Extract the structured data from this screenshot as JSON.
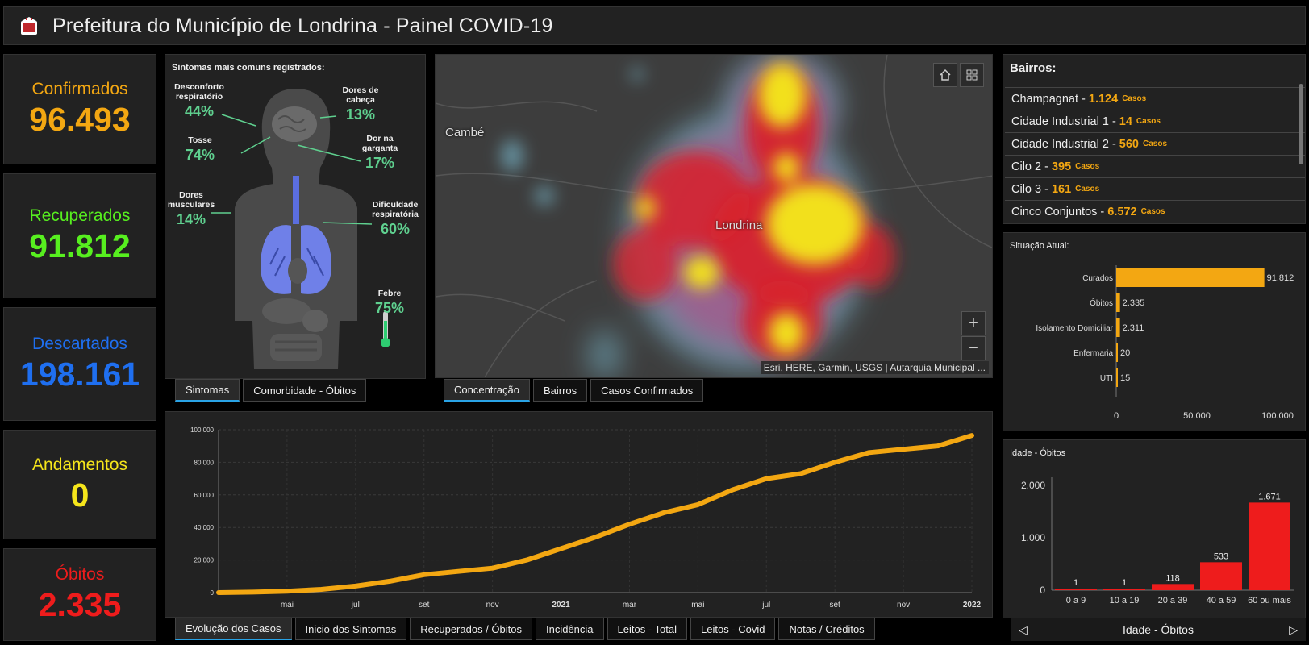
{
  "header": {
    "title": "Prefeitura do Município de Londrina - Painel COVID-19",
    "logo_icon": "city-crest-icon"
  },
  "stats": [
    {
      "label": "Confirmados",
      "value": "96.493",
      "color": "#f3a712"
    },
    {
      "label": "Recuperados",
      "value": "91.812",
      "color": "#57ef1f"
    },
    {
      "label": "Descartados",
      "value": "198.161",
      "color": "#1f6ff0"
    },
    {
      "label": "Andamentos",
      "value": "0",
      "color": "#f5e51b"
    },
    {
      "label": "Óbitos",
      "value": "2.335",
      "color": "#ee1c1c"
    }
  ],
  "symptoms": {
    "title": "Sintomas mais comuns registrados:",
    "items": [
      {
        "name": "Desconforto respiratório",
        "pct": "44%"
      },
      {
        "name": "Dores de cabeça",
        "pct": "13%"
      },
      {
        "name": "Tosse",
        "pct": "74%"
      },
      {
        "name": "Dor na garganta",
        "pct": "17%"
      },
      {
        "name": "Dores musculares",
        "pct": "14%"
      },
      {
        "name": "Dificuldade respiratória",
        "pct": "60%"
      },
      {
        "name": "Febre",
        "pct": "75%"
      }
    ],
    "tabs": [
      "Sintomas",
      "Comorbidade - Óbitos"
    ]
  },
  "map": {
    "labels": [
      "Cambé",
      "Londrina"
    ],
    "attribution": "Esri, HERE, Garmin, USGS | Autarquia Municipal ...",
    "zoom_in": "+",
    "zoom_out": "−",
    "home_icon": "home-icon",
    "grid_icon": "basemap-gallery-icon",
    "tabs": [
      "Concentração",
      "Bairros",
      "Casos Confirmados"
    ]
  },
  "bairros": {
    "title": "Bairros:",
    "items": [
      {
        "name": "Champagnat",
        "value": "1.124",
        "unit": "Casos"
      },
      {
        "name": "Cidade Industrial 1",
        "value": "14",
        "unit": "Casos"
      },
      {
        "name": "Cidade Industrial 2",
        "value": "560",
        "unit": "Casos"
      },
      {
        "name": "Cilo 2",
        "value": "395",
        "unit": "Casos"
      },
      {
        "name": "Cilo 3",
        "value": "161",
        "unit": "Casos"
      },
      {
        "name": "Cinco Conjuntos",
        "value": "6.572",
        "unit": "Casos"
      }
    ]
  },
  "evolution": {
    "tabs": [
      "Evolução dos Casos",
      "Inicio dos Sintomas",
      "Recuperados / Óbitos",
      "Incidência",
      "Leitos - Total",
      "Leitos - Covid",
      "Notas / Créditos"
    ]
  },
  "idade_footer": {
    "label": "Idade - Óbitos",
    "prev": "◁",
    "next": "▷"
  },
  "chart_data": [
    {
      "type": "bar",
      "orientation": "horizontal",
      "title": "Situação Atual:",
      "categories": [
        "Curados",
        "Óbitos",
        "Isolamento Domiciliar",
        "Enfermaria",
        "UTI"
      ],
      "values": [
        91812,
        2335,
        2311,
        20,
        15
      ],
      "value_labels": [
        "91.812",
        "2.335",
        "2.311",
        "20",
        "15"
      ],
      "xlim": [
        0,
        100000
      ],
      "ticks": [
        "0",
        "50.000",
        "100.000"
      ],
      "color": "#f3a712"
    },
    {
      "type": "bar",
      "title": "Idade - Óbitos",
      "categories": [
        "0 a 9",
        "10 a 19",
        "20 a 39",
        "40 a 59",
        "60 ou mais"
      ],
      "values": [
        1,
        1,
        118,
        533,
        1671
      ],
      "value_labels": [
        "1",
        "1",
        "118",
        "533",
        "1.671"
      ],
      "ylim": [
        0,
        2000
      ],
      "ticks": [
        "0",
        "1.000",
        "2.000"
      ],
      "color": "#ee1c1c"
    },
    {
      "type": "line",
      "x_labels": [
        "mai",
        "jul",
        "set",
        "nov",
        "2021",
        "mar",
        "mai",
        "jul",
        "set",
        "nov",
        "2022"
      ],
      "ylim": [
        0,
        100000
      ],
      "y_ticks": [
        "0",
        "20.000",
        "40.000",
        "60.000",
        "80.000",
        "100.000"
      ],
      "x": [
        "2020-03",
        "2020-04",
        "2020-05",
        "2020-06",
        "2020-07",
        "2020-08",
        "2020-09",
        "2020-10",
        "2020-11",
        "2020-12",
        "2021-01",
        "2021-02",
        "2021-03",
        "2021-04",
        "2021-05",
        "2021-06",
        "2021-07",
        "2021-08",
        "2021-09",
        "2021-10",
        "2021-11",
        "2021-12",
        "2022-01"
      ],
      "values": [
        0,
        300,
        900,
        2000,
        4000,
        7000,
        11000,
        13000,
        15000,
        20000,
        27000,
        34000,
        42000,
        49000,
        54000,
        63000,
        70000,
        73000,
        80000,
        86000,
        88000,
        90000,
        96493
      ],
      "color": "#f3a712"
    }
  ]
}
